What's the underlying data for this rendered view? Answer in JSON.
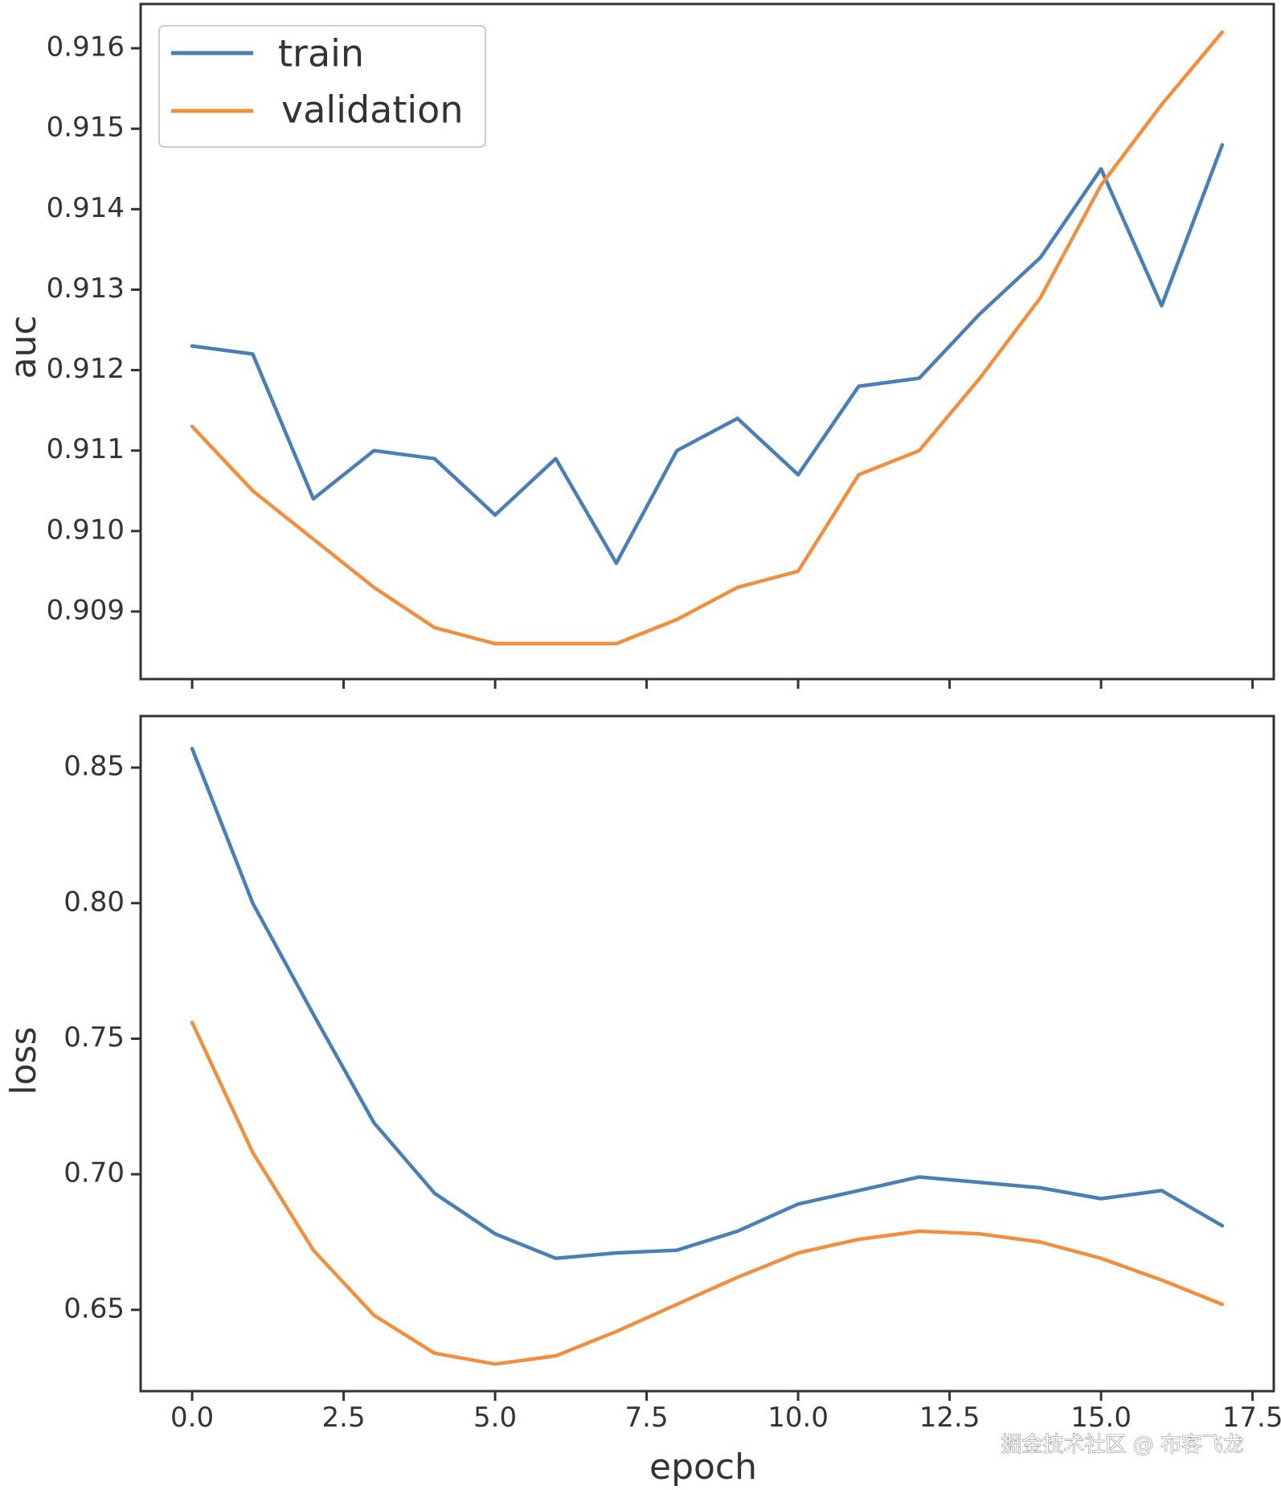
{
  "chart_data": [
    {
      "type": "line",
      "id": "auc",
      "title": "",
      "xlabel": "",
      "ylabel": "auc",
      "xlim": [
        -0.85,
        17.85
      ],
      "ylim": [
        0.90816,
        0.91655
      ],
      "xticks": [
        0.0,
        2.5,
        5.0,
        7.5,
        10.0,
        12.5,
        15.0,
        17.5
      ],
      "yticks": [
        0.909,
        0.91,
        0.911,
        0.912,
        0.913,
        0.914,
        0.915,
        0.916
      ],
      "ytick_labels": [
        "0.909",
        "0.910",
        "0.911",
        "0.912",
        "0.913",
        "0.914",
        "0.915",
        "0.916"
      ],
      "grid": false,
      "legend": "top-left",
      "x": [
        0,
        1,
        2,
        3,
        4,
        5,
        6,
        7,
        8,
        9,
        10,
        11,
        12,
        13,
        14,
        15,
        16,
        17
      ],
      "series": [
        {
          "name": "train",
          "color": "#4a7fb5",
          "values": [
            0.9123,
            0.9122,
            0.9104,
            0.911,
            0.9109,
            0.9102,
            0.9109,
            0.9096,
            0.911,
            0.9114,
            0.9107,
            0.9118,
            0.9119,
            0.9127,
            0.9134,
            0.9145,
            0.9128,
            0.9148
          ]
        },
        {
          "name": "validation",
          "color": "#f0903e",
          "values": [
            0.9113,
            0.9105,
            0.9099,
            0.9093,
            0.9088,
            0.9086,
            0.9086,
            0.9086,
            0.9089,
            0.9093,
            0.9095,
            0.9107,
            0.911,
            0.9119,
            0.9129,
            0.9143,
            0.9153,
            0.9162
          ]
        }
      ]
    },
    {
      "type": "line",
      "id": "loss",
      "title": "",
      "xlabel": "epoch",
      "ylabel": "loss",
      "xlim": [
        -0.85,
        17.85
      ],
      "ylim": [
        0.62,
        0.869
      ],
      "xticks": [
        0.0,
        2.5,
        5.0,
        7.5,
        10.0,
        12.5,
        15.0,
        17.5
      ],
      "xtick_labels": [
        "0.0",
        "2.5",
        "5.0",
        "7.5",
        "10.0",
        "12.5",
        "15.0",
        "17.5"
      ],
      "yticks": [
        0.65,
        0.7,
        0.75,
        0.8,
        0.85
      ],
      "ytick_labels": [
        "0.65",
        "0.70",
        "0.75",
        "0.80",
        "0.85"
      ],
      "grid": false,
      "x": [
        0,
        1,
        2,
        3,
        4,
        5,
        6,
        7,
        8,
        9,
        10,
        11,
        12,
        13,
        14,
        15,
        16,
        17
      ],
      "series": [
        {
          "name": "train",
          "color": "#4a7fb5",
          "values": [
            0.857,
            0.8,
            0.759,
            0.719,
            0.693,
            0.678,
            0.669,
            0.671,
            0.672,
            0.679,
            0.689,
            0.694,
            0.699,
            0.697,
            0.695,
            0.691,
            0.694,
            0.681
          ]
        },
        {
          "name": "validation",
          "color": "#f0903e",
          "values": [
            0.756,
            0.708,
            0.672,
            0.648,
            0.634,
            0.63,
            0.633,
            0.642,
            0.652,
            0.662,
            0.671,
            0.676,
            0.679,
            0.678,
            0.675,
            0.669,
            0.661,
            0.652
          ]
        }
      ]
    }
  ],
  "watermark": "掘金技术社区 @ 布客飞龙"
}
